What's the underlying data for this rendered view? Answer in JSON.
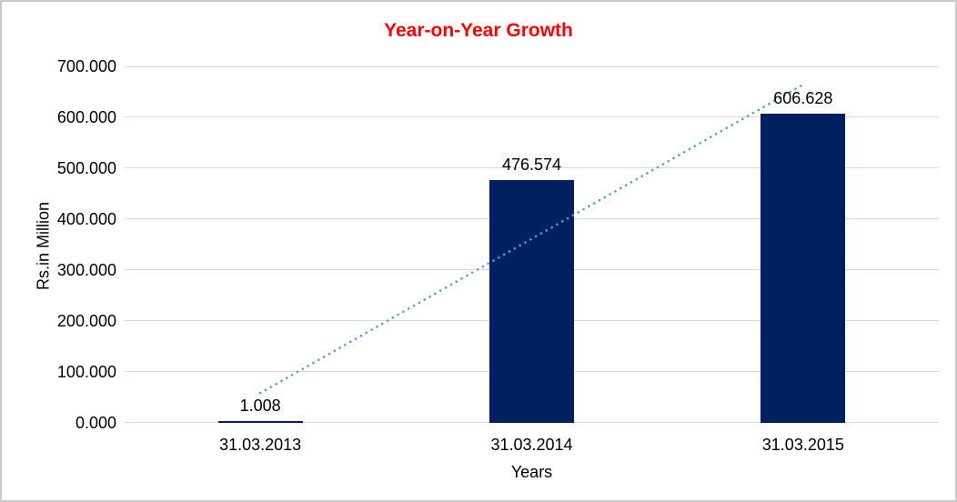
{
  "chart_data": {
    "type": "bar",
    "title": "Year-on-Year Growth",
    "title_color": "#FF0000",
    "categories": [
      "31.03.2013",
      "31.03.2014",
      "31.03.2015"
    ],
    "values": [
      1.008,
      476.574,
      606.628
    ],
    "data_labels": [
      "1.008",
      "476.574",
      "606.628"
    ],
    "xlabel": "Years",
    "ylabel": "Rs.in Million",
    "ylim": [
      0,
      700
    ],
    "ytick_labels": [
      "0.000",
      "100.000",
      "200.000",
      "300.000",
      "400.000",
      "500.000",
      "600.000",
      "700.000"
    ],
    "grid": "horizontal",
    "gridline_color": "#D9D9D9",
    "bar_color": "#002060",
    "trendline": {
      "type": "linear",
      "style": "dotted",
      "color": "#5B9BD5"
    },
    "legend": "none"
  }
}
